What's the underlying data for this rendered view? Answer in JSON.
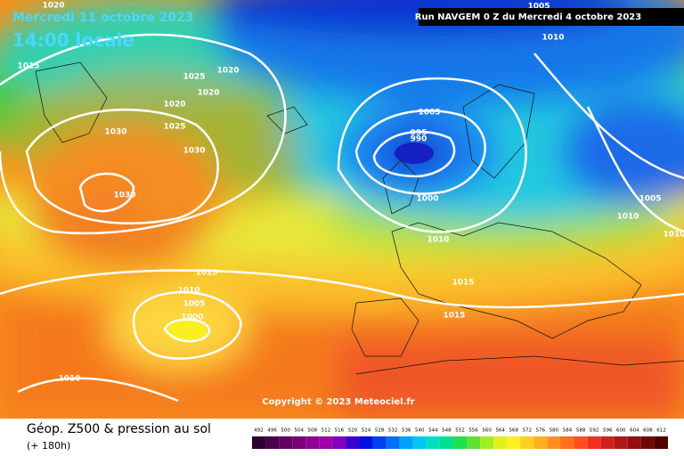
{
  "header": {
    "valid_date": "Mercredi 11 octobre 2023",
    "local_time": "14:00 locale",
    "run": "Run NAVGEM 0 Z du Mercredi 4 octobre 2023"
  },
  "isobar_labels": [
    "1020",
    "1015",
    "1025",
    "1020",
    "1020",
    "1020",
    "1030",
    "1025",
    "1030",
    "1030",
    "1005",
    "995",
    "990",
    "1000",
    "1010",
    "1005",
    "1005",
    "1010",
    "1010",
    "1015",
    "1010",
    "1005",
    "1000",
    "1015",
    "1015",
    "1010",
    "1010"
  ],
  "copyright": "Copyright © 2023 Meteociel.fr",
  "footer": {
    "title": "Géop. Z500 & pression au sol",
    "lead": "(+ 180h)"
  },
  "scale_labels": [
    "492",
    "496",
    "500",
    "504",
    "508",
    "512",
    "516",
    "520",
    "524",
    "528",
    "532",
    "536",
    "540",
    "544",
    "548",
    "552",
    "556",
    "560",
    "564",
    "568",
    "572",
    "576",
    "580",
    "584",
    "588",
    "592",
    "596",
    "600",
    "604",
    "608",
    "612"
  ]
}
